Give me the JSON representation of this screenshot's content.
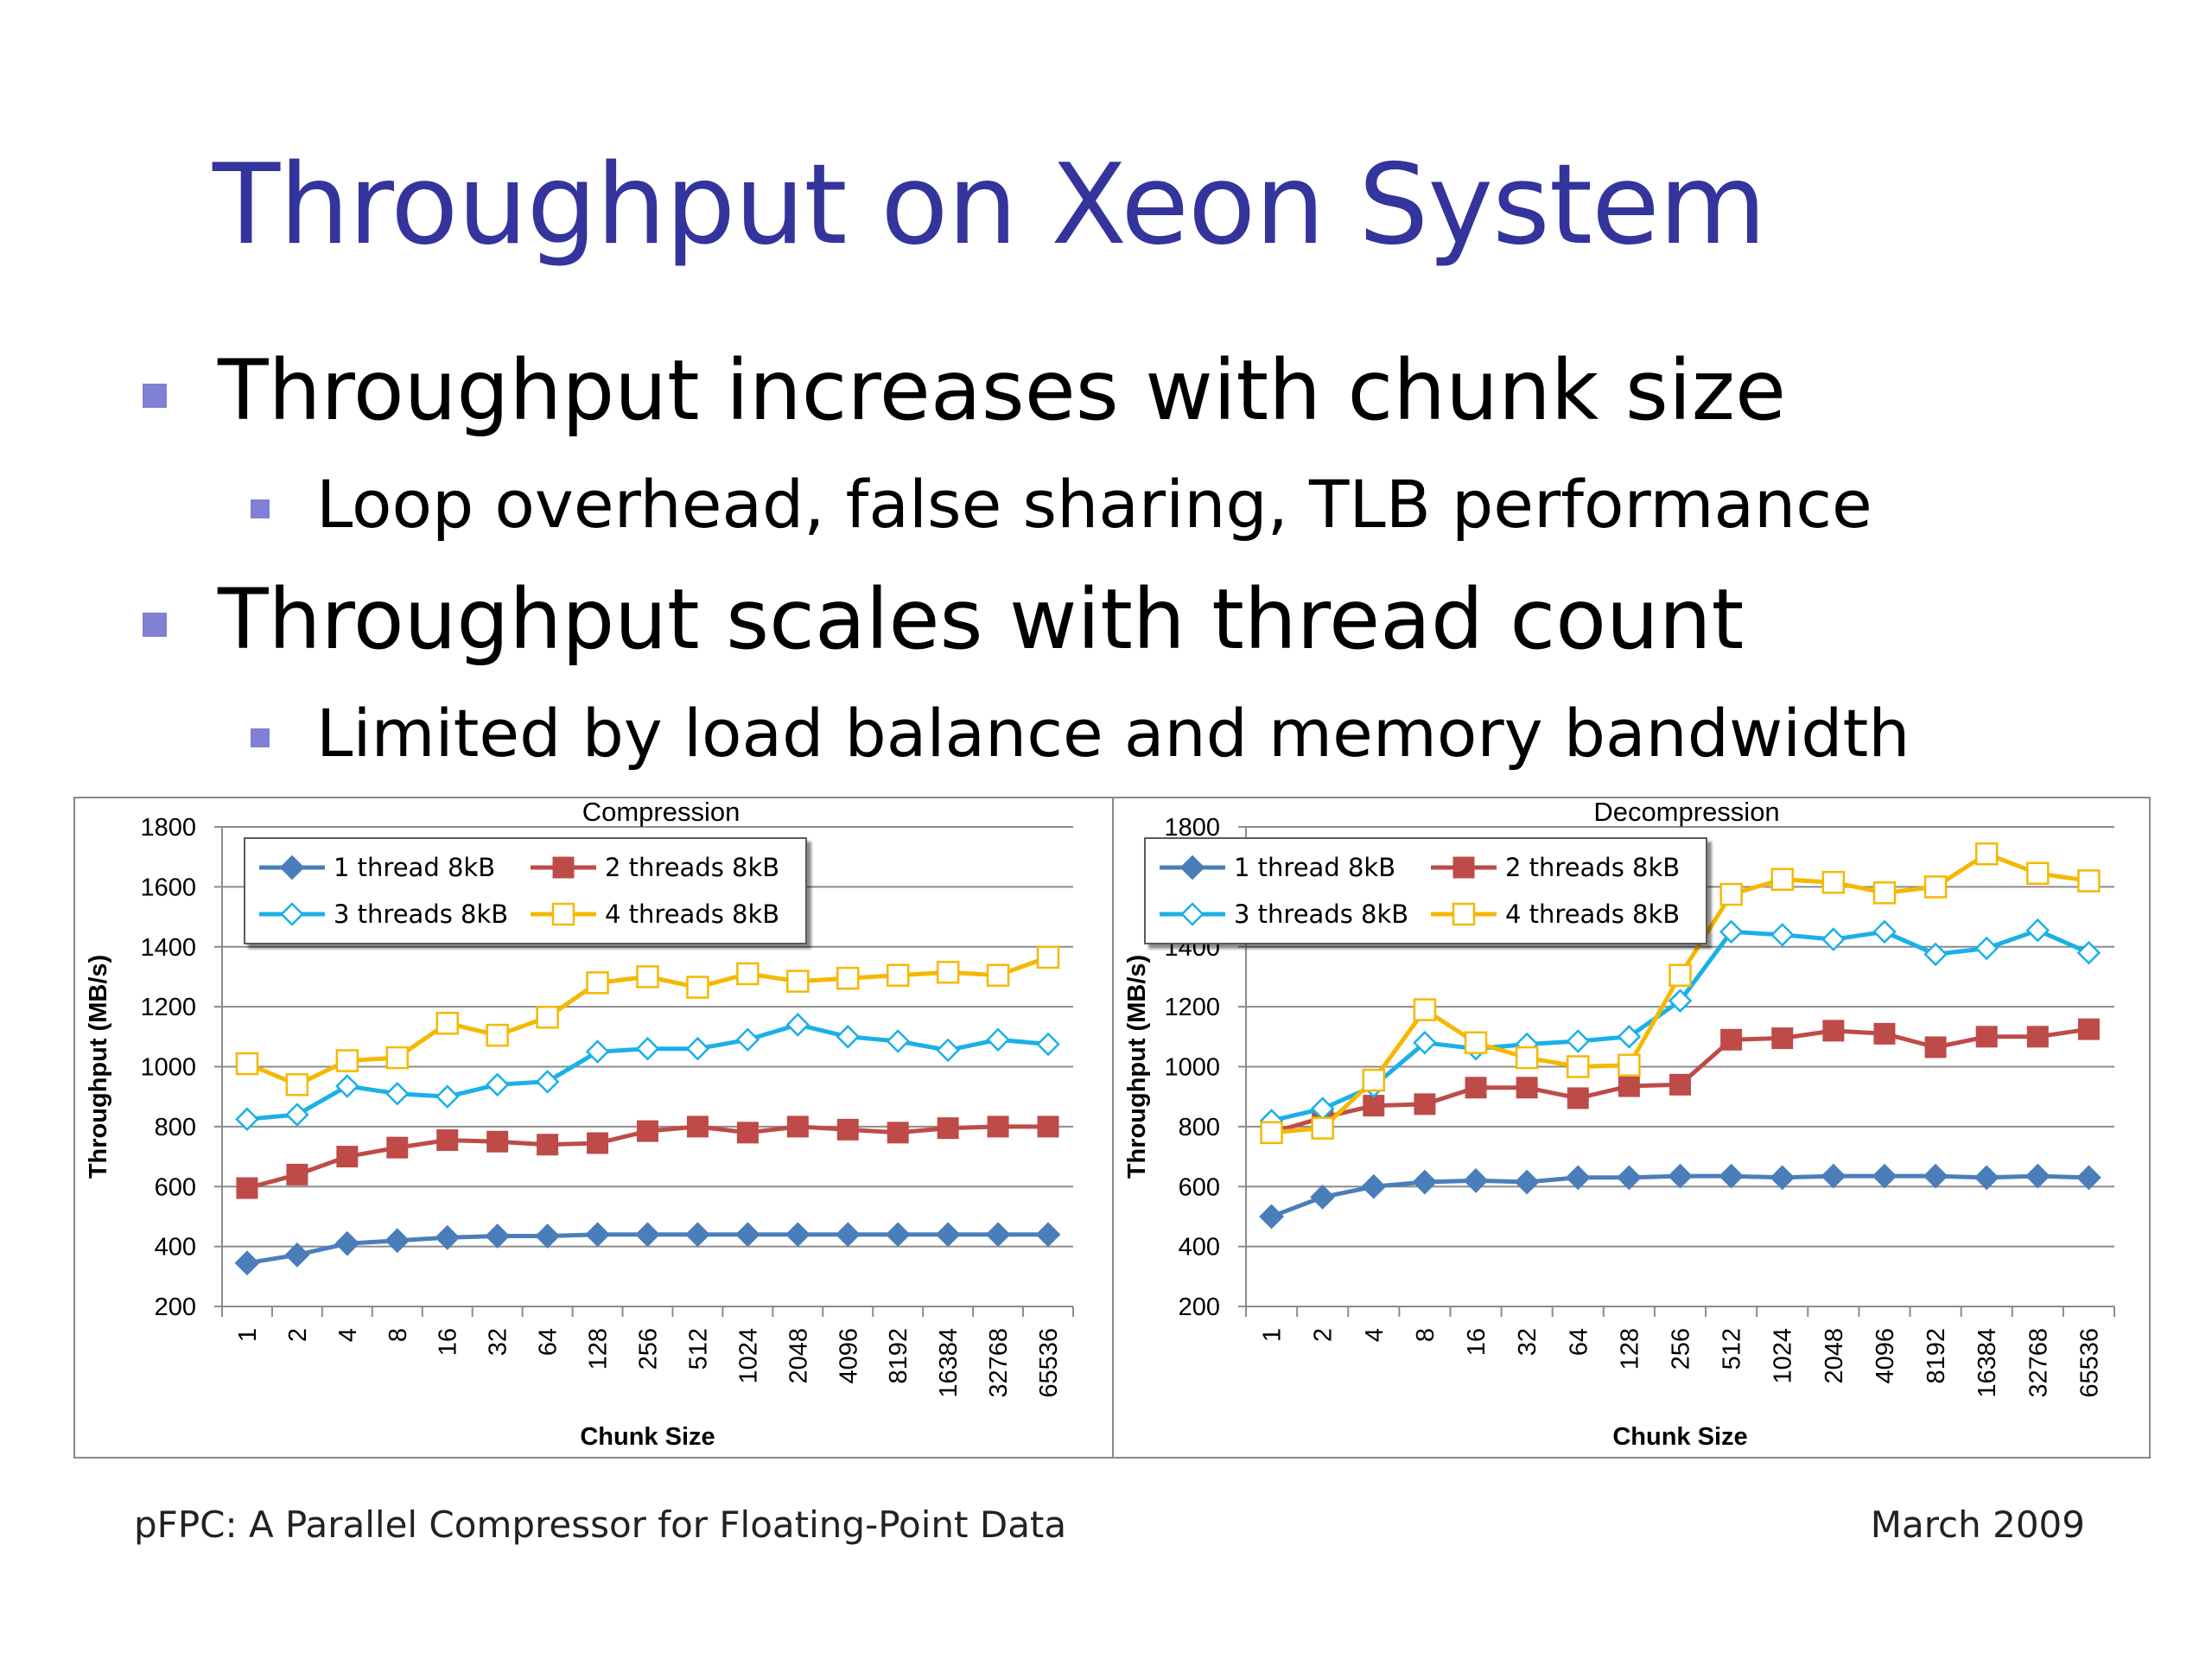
{
  "slide": {
    "title": "Throughput on Xeon System",
    "bullets": [
      {
        "text": "Throughput increases with chunk size",
        "sub": [
          "Loop overhead, false sharing, TLB performance"
        ]
      },
      {
        "text": "Throughput scales with thread count",
        "sub": [
          "Limited by load balance and memory bandwidth"
        ]
      }
    ],
    "footer_left": "pFPC: A Parallel Compressor for Floating-Point Data",
    "footer_right": "March 2009"
  },
  "colors": {
    "title": "#33349c",
    "bullet_square": "#8080d4",
    "series_1_thread": "#4a7ebb",
    "series_2_threads": "#be4b48",
    "series_3_threads": "#1ab0e8",
    "series_4_threads": "#f5b800"
  },
  "chart_data": [
    {
      "type": "line",
      "title": "Compression",
      "xlabel": "Chunk Size",
      "ylabel": "Throughput (MB/s)",
      "ylim": [
        200,
        1800
      ],
      "yticks": [
        200,
        400,
        600,
        800,
        1000,
        1200,
        1400,
        1600,
        1800
      ],
      "grid": true,
      "legend": "top-left",
      "categories": [
        "1",
        "2",
        "4",
        "8",
        "16",
        "32",
        "64",
        "128",
        "256",
        "512",
        "1024",
        "2048",
        "4096",
        "8192",
        "16384",
        "32768",
        "65536"
      ],
      "series": [
        {
          "name": "1 thread 8kB",
          "marker": "diamond-filled",
          "values": [
            345,
            372,
            410,
            420,
            430,
            435,
            435,
            440,
            440,
            440,
            440,
            440,
            440,
            440,
            440,
            440,
            440
          ]
        },
        {
          "name": "2 threads 8kB",
          "marker": "square-filled",
          "values": [
            595,
            640,
            700,
            730,
            755,
            750,
            740,
            745,
            785,
            800,
            780,
            800,
            790,
            780,
            795,
            800,
            800
          ]
        },
        {
          "name": "3 threads 8kB",
          "marker": "diamond-open",
          "values": [
            825,
            840,
            935,
            910,
            900,
            940,
            950,
            1050,
            1060,
            1060,
            1090,
            1140,
            1100,
            1085,
            1055,
            1090,
            1075
          ]
        },
        {
          "name": "4 threads 8kB",
          "marker": "square-open",
          "values": [
            1010,
            940,
            1020,
            1030,
            1145,
            1105,
            1165,
            1280,
            1300,
            1265,
            1310,
            1285,
            1295,
            1305,
            1315,
            1305,
            1365
          ]
        }
      ]
    },
    {
      "type": "line",
      "title": "Decompression",
      "xlabel": "Chunk Size",
      "ylabel": "Throughput (MB/s)",
      "ylim": [
        200,
        1800
      ],
      "yticks": [
        200,
        400,
        600,
        800,
        1000,
        1200,
        1400,
        1600,
        1800
      ],
      "grid": true,
      "legend": "top-left",
      "categories": [
        "1",
        "2",
        "4",
        "8",
        "16",
        "32",
        "64",
        "128",
        "256",
        "512",
        "1024",
        "2048",
        "4096",
        "8192",
        "16384",
        "32768",
        "65536"
      ],
      "series": [
        {
          "name": "1 thread 8kB",
          "marker": "diamond-filled",
          "values": [
            500,
            565,
            600,
            615,
            620,
            615,
            630,
            630,
            635,
            635,
            630,
            635,
            635,
            635,
            630,
            635,
            630
          ]
        },
        {
          "name": "2 threads 8kB",
          "marker": "square-filled",
          "values": [
            780,
            830,
            870,
            875,
            930,
            930,
            895,
            935,
            940,
            1090,
            1095,
            1120,
            1110,
            1065,
            1100,
            1100,
            1125
          ]
        },
        {
          "name": "3 threads 8kB",
          "marker": "diamond-open",
          "values": [
            820,
            860,
            935,
            1080,
            1060,
            1075,
            1085,
            1100,
            1220,
            1450,
            1440,
            1425,
            1450,
            1375,
            1395,
            1455,
            1380
          ]
        },
        {
          "name": "4 threads 8kB",
          "marker": "square-open",
          "values": [
            780,
            795,
            955,
            1190,
            1080,
            1030,
            1000,
            1005,
            1305,
            1575,
            1625,
            1615,
            1580,
            1600,
            1710,
            1645,
            1620
          ]
        }
      ]
    }
  ]
}
